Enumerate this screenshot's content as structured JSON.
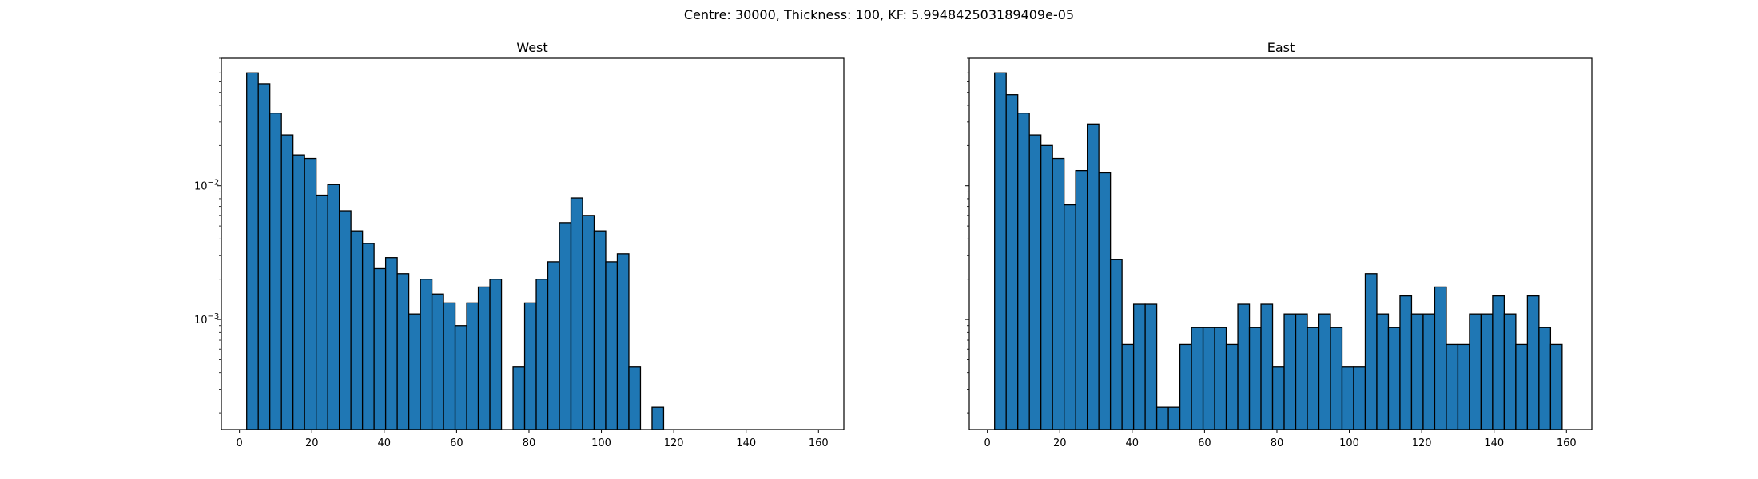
{
  "figure": {
    "suptitle": "Centre: 30000, Thickness: 100, KF: 5.994842503189409e-05"
  },
  "colors": {
    "bar_fill": "#1f77b4",
    "bar_edge": "#000000",
    "axes": "#000000",
    "background": "#ffffff"
  },
  "chart_data": [
    {
      "type": "bar",
      "title": "West",
      "xlabel": "",
      "ylabel": "",
      "yscale": "log",
      "xlim": [
        -5,
        167
      ],
      "ylim": [
        0.00015,
        0.09
      ],
      "xticks": [
        0,
        20,
        40,
        60,
        80,
        100,
        120,
        140,
        160
      ],
      "xtick_labels": [
        "0",
        "20",
        "40",
        "60",
        "80",
        "100",
        "120",
        "140",
        "160"
      ],
      "yticks": [
        0.01,
        0.001
      ],
      "ytick_labels": [
        {
          "base": "10",
          "exp": "−2"
        },
        {
          "base": "10",
          "exp": "−3"
        }
      ],
      "bin_edges": [
        2.0,
        5.2,
        8.4,
        11.6,
        14.8,
        18.0,
        21.2,
        24.4,
        27.6,
        30.8,
        34.0,
        37.2,
        40.4,
        43.6,
        46.8,
        50.0,
        53.2,
        56.4,
        59.6,
        62.8,
        66.0,
        69.2,
        72.4,
        75.6,
        78.8,
        82.0,
        85.2,
        88.4,
        91.6,
        94.8,
        98.0,
        101.2,
        104.4,
        107.6,
        110.8,
        114.0,
        117.2,
        120.4,
        123.6,
        126.8,
        130.0,
        133.2,
        136.4,
        139.6,
        142.8,
        146.0,
        149.2,
        152.4,
        155.6,
        158.8
      ],
      "values": [
        0.07,
        0.058,
        0.035,
        0.024,
        0.017,
        0.016,
        0.0085,
        0.0102,
        0.0065,
        0.0046,
        0.0037,
        0.0024,
        0.0029,
        0.0022,
        0.0011,
        0.002,
        0.00155,
        0.00133,
        0.0009,
        0.00133,
        0.00175,
        0.002,
        0,
        0.00044,
        0.00133,
        0.002,
        0.0027,
        0.0053,
        0.0081,
        0.006,
        0.0046,
        0.0027,
        0.0031,
        0.00044,
        0,
        0.00022,
        0,
        0,
        0,
        0,
        0,
        0,
        0,
        0,
        0,
        0,
        0,
        0,
        0
      ]
    },
    {
      "type": "bar",
      "title": "East",
      "xlabel": "",
      "ylabel": "",
      "yscale": "log",
      "xlim": [
        -5,
        167
      ],
      "ylim": [
        0.00015,
        0.09
      ],
      "xticks": [
        0,
        20,
        40,
        60,
        80,
        100,
        120,
        140,
        160
      ],
      "xtick_labels": [
        "0",
        "20",
        "40",
        "60",
        "80",
        "100",
        "120",
        "140",
        "160"
      ],
      "yticks": [],
      "ytick_labels": [],
      "bin_edges": [
        2.0,
        5.2,
        8.4,
        11.6,
        14.8,
        18.0,
        21.2,
        24.4,
        27.6,
        30.8,
        34.0,
        37.2,
        40.4,
        43.6,
        46.8,
        50.0,
        53.2,
        56.4,
        59.6,
        62.8,
        66.0,
        69.2,
        72.4,
        75.6,
        78.8,
        82.0,
        85.2,
        88.4,
        91.6,
        94.8,
        98.0,
        101.2,
        104.4,
        107.6,
        110.8,
        114.0,
        117.2,
        120.4,
        123.6,
        126.8,
        130.0,
        133.2,
        136.4,
        139.6,
        142.8,
        146.0,
        149.2,
        152.4,
        155.6,
        158.8
      ],
      "values": [
        0.07,
        0.048,
        0.035,
        0.024,
        0.02,
        0.016,
        0.0072,
        0.013,
        0.029,
        0.0125,
        0.0028,
        0.00065,
        0.0013,
        0.0013,
        0.00022,
        0.00022,
        0.00065,
        0.00087,
        0.00087,
        0.00087,
        0.00065,
        0.0013,
        0.00087,
        0.0013,
        0.00044,
        0.0011,
        0.0011,
        0.00087,
        0.0011,
        0.00087,
        0.00044,
        0.00044,
        0.0022,
        0.0011,
        0.00087,
        0.0015,
        0.0011,
        0.0011,
        0.00175,
        0.00065,
        0.00065,
        0.0011,
        0.0011,
        0.0015,
        0.0011,
        0.00065,
        0.0015,
        0.00087,
        0.00065
      ]
    }
  ]
}
